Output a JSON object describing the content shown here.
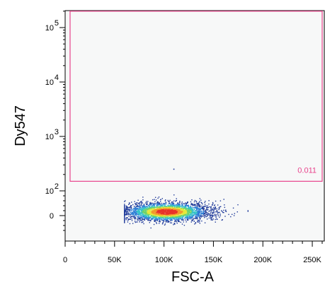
{
  "chart_data": {
    "type": "scatter",
    "subtype": "flow-cytometry-density-dot-plot",
    "xlabel": "FSC-A",
    "ylabel": "Dy547",
    "x_scale": "linear",
    "y_scale": "biexponential",
    "xlim": [
      0,
      262144
    ],
    "ylim": [
      -60,
      262144
    ],
    "x_ticks": [
      {
        "value": 0,
        "label": "0"
      },
      {
        "value": 50000,
        "label": "50K"
      },
      {
        "value": 100000,
        "label": "100K"
      },
      {
        "value": 150000,
        "label": "150K"
      },
      {
        "value": 200000,
        "label": "200K"
      },
      {
        "value": 250000,
        "label": "250K"
      }
    ],
    "y_ticks": [
      {
        "value": 0,
        "base": "0",
        "exp": ""
      },
      {
        "value": 100,
        "base": "10",
        "exp": "2"
      },
      {
        "value": 1000,
        "base": "10",
        "exp": "3"
      },
      {
        "value": 10000,
        "base": "10",
        "exp": "4"
      },
      {
        "value": 100000,
        "base": "10",
        "exp": "5"
      }
    ],
    "population": {
      "x_center": 103000,
      "x_spread": 20000,
      "y_center": 15,
      "y_spread": 18,
      "x_range": [
        60000,
        185000
      ],
      "y_range": [
        -50,
        100
      ],
      "event_count": 3200,
      "density_colors": [
        "#1f3a9a",
        "#2f7fd6",
        "#36c3c9",
        "#6fd36a",
        "#e5e83a",
        "#f29a2e",
        "#e8322a"
      ]
    },
    "outliers": [
      {
        "x": 110000,
        "y": 250
      }
    ],
    "gate": {
      "label": "0.011",
      "x_range": [
        5000,
        260000
      ],
      "y_range": [
        150,
        200000
      ],
      "color": "#e8438c"
    },
    "grid": false,
    "plot_background": "#f7f8f8"
  }
}
